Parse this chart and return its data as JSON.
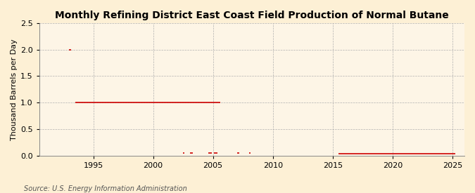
{
  "title": "Monthly Refining District East Coast Field Production of Normal Butane",
  "ylabel": "Thousand Barrels per Day",
  "source": "Source: U.S. Energy Information Administration",
  "background_color": "#fdf0d5",
  "plot_background_color": "#fdf5e6",
  "line_color": "#cc0000",
  "xlim": [
    1990.5,
    2026
  ],
  "ylim": [
    0.0,
    2.5
  ],
  "yticks": [
    0.0,
    0.5,
    1.0,
    1.5,
    2.0,
    2.5
  ],
  "xticks": [
    1995,
    2000,
    2005,
    2010,
    2015,
    2020,
    2025
  ],
  "title_fontsize": 10,
  "label_fontsize": 8,
  "tick_fontsize": 8,
  "source_fontsize": 7
}
